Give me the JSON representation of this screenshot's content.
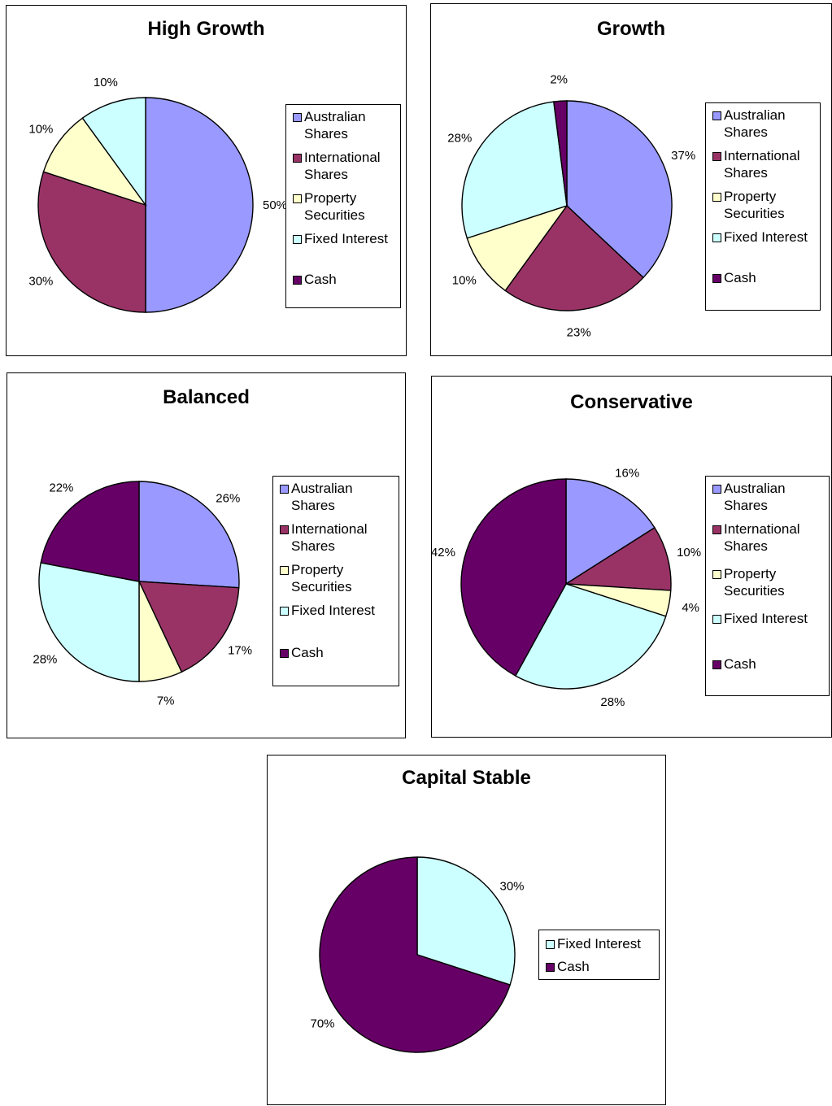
{
  "colors": {
    "australian_shares": "#9999ff",
    "international_shares": "#993366",
    "property_securities": "#ffffcc",
    "fixed_interest": "#ccffff",
    "cash": "#660066"
  },
  "chart_data": [
    {
      "type": "pie",
      "title": "High Growth",
      "categories": [
        "Australian Shares",
        "International Shares",
        "Property Securities",
        "Fixed Interest",
        "Cash"
      ],
      "values": [
        50,
        30,
        10,
        10,
        0
      ],
      "data_labels": [
        "50%",
        "30%",
        "10%",
        "10%",
        ""
      ],
      "legend": [
        "Australian Shares",
        "International Shares",
        "Property Securities",
        "Fixed Interest",
        "Cash"
      ],
      "legend_position": "right"
    },
    {
      "type": "pie",
      "title": "Growth",
      "categories": [
        "Australian Shares",
        "International Shares",
        "Property Securities",
        "Fixed Interest",
        "Cash"
      ],
      "values": [
        37,
        23,
        10,
        28,
        2
      ],
      "data_labels": [
        "37%",
        "23%",
        "10%",
        "28%",
        "2%"
      ],
      "legend": [
        "Australian Shares",
        "International Shares",
        "Property Securities",
        "Fixed Interest",
        "Cash"
      ],
      "legend_position": "right"
    },
    {
      "type": "pie",
      "title": "Balanced",
      "categories": [
        "Australian Shares",
        "International Shares",
        "Property Securities",
        "Fixed Interest",
        "Cash"
      ],
      "values": [
        26,
        17,
        7,
        28,
        22
      ],
      "data_labels": [
        "26%",
        "17%",
        "7%",
        "28%",
        "22%"
      ],
      "legend": [
        "Australian Shares",
        "International Shares",
        "Property Securities",
        "Fixed Interest",
        "Cash"
      ],
      "legend_position": "right"
    },
    {
      "type": "pie",
      "title": "Conservative",
      "categories": [
        "Australian Shares",
        "International Shares",
        "Property Securities",
        "Fixed Interest",
        "Cash"
      ],
      "values": [
        16,
        10,
        4,
        28,
        42
      ],
      "data_labels": [
        "16%",
        "10%",
        "4%",
        "28%",
        "42%"
      ],
      "legend": [
        "Australian Shares",
        "International Shares",
        "Property Securities",
        "Fixed Interest",
        "Cash"
      ],
      "legend_position": "right"
    },
    {
      "type": "pie",
      "title": "Capital Stable",
      "categories": [
        "Fixed Interest",
        "Cash"
      ],
      "values": [
        30,
        70
      ],
      "data_labels": [
        "30%",
        "70%"
      ],
      "legend": [
        "Fixed Interest",
        "Cash"
      ],
      "legend_position": "right"
    }
  ]
}
